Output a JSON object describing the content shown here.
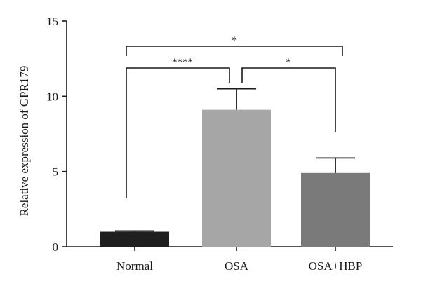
{
  "chart_data": {
    "type": "bar",
    "title": "",
    "xlabel": "",
    "ylabel": "Relative expression of GPR179",
    "ylim": [
      0,
      15
    ],
    "yticks": [
      0,
      5,
      10,
      15
    ],
    "categories": [
      "Normal",
      "OSA",
      "OSA+HBP"
    ],
    "values": [
      1.0,
      9.1,
      4.9
    ],
    "errors": [
      0.05,
      1.4,
      1.0
    ],
    "colors": [
      "#1f1f1f",
      "#a6a6a6",
      "#7a7a7a"
    ],
    "grid": false,
    "significance": [
      {
        "from": 1,
        "to": 2,
        "label": "****"
      },
      {
        "from": 2,
        "to": 3,
        "label": "*"
      },
      {
        "from": 1,
        "to": 3,
        "label": "*"
      }
    ]
  }
}
